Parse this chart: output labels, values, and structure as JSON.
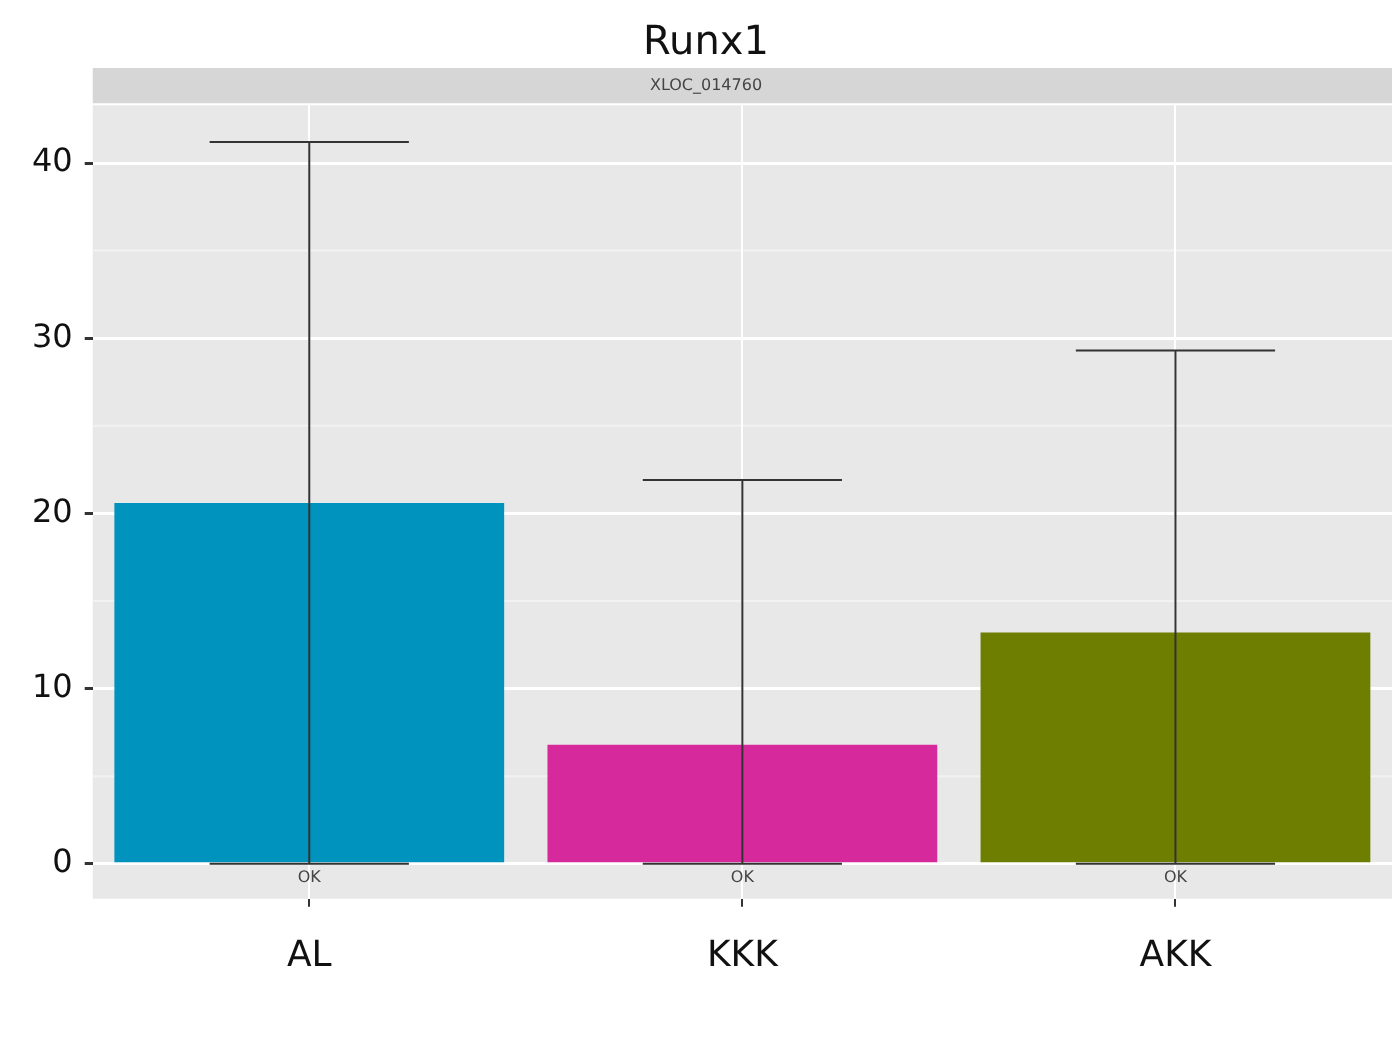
{
  "chart_data": {
    "type": "bar",
    "title": "Runx1",
    "subtitle": "XLOC_014760",
    "categories": [
      "AL",
      "KKK",
      "AKK"
    ],
    "values": [
      20.6,
      6.8,
      13.2
    ],
    "colors": [
      "#0093bd",
      "#d62a9c",
      "#6e7e00"
    ],
    "errors": [
      [
        0,
        41.2
      ],
      [
        0,
        21.9
      ],
      [
        0,
        29.3
      ]
    ],
    "ylim": [
      -2,
      43.3
    ],
    "yticks": [
      0,
      10,
      20,
      30,
      40
    ],
    "grid": true,
    "annotations": [
      {
        "text": "OK",
        "x": "AL",
        "y": 0
      },
      {
        "text": "OK",
        "x": "KKK",
        "y": 0
      },
      {
        "text": "OK",
        "x": "AKK",
        "y": 0
      }
    ]
  }
}
